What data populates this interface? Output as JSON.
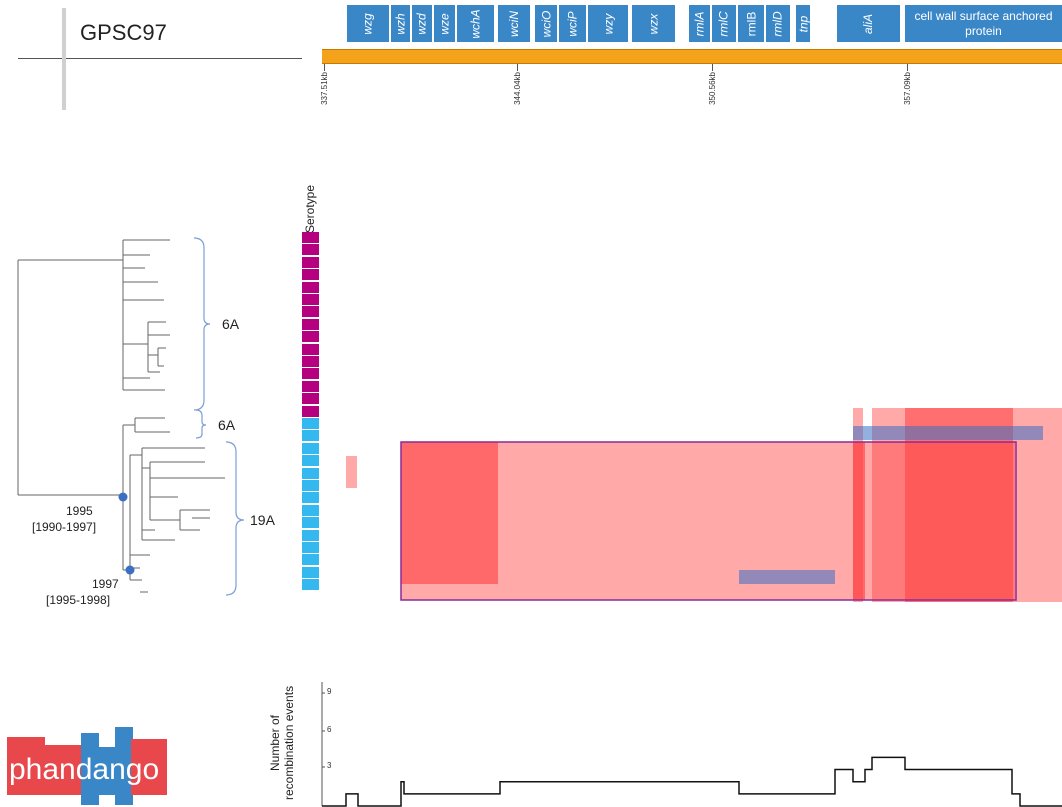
{
  "title": "GPSC97",
  "genes": [
    {
      "label": "wzg",
      "italic": true
    },
    {
      "label": "wzh",
      "italic": true
    },
    {
      "label": "wzd",
      "italic": true
    },
    {
      "label": "wze",
      "italic": true
    },
    {
      "label": "wchA",
      "italic": true
    },
    {
      "label": "wciN",
      "italic": true
    },
    {
      "label": "wciO",
      "italic": true
    },
    {
      "label": "wciP",
      "italic": true
    },
    {
      "label": "wzy",
      "italic": true
    },
    {
      "label": "wzx",
      "italic": true
    },
    {
      "label": "rmlA",
      "italic": true
    },
    {
      "label": "rmlC",
      "italic": true
    },
    {
      "label": "rmlB",
      "italic": false
    },
    {
      "label": "rmlD",
      "italic": true
    },
    {
      "label": "tnp",
      "italic": true
    },
    {
      "label": "aliA",
      "italic": true
    },
    {
      "label": "cell wall surface anchored protein",
      "italic": false
    }
  ],
  "genome_ticks": [
    "337.51kb",
    "344.04kb",
    "350.56kb",
    "357.09kb"
  ],
  "serotype_label": "Serotype",
  "serotype_colors": {
    "6A": "#b5007f",
    "19A": "#33b8f0"
  },
  "serotypes": [
    "6A",
    "6A",
    "6A",
    "6A",
    "6A",
    "6A",
    "6A",
    "6A",
    "6A",
    "6A",
    "6A",
    "6A",
    "6A",
    "6A",
    "6A",
    "19A",
    "19A",
    "19A",
    "19A",
    "19A",
    "19A",
    "19A",
    "19A",
    "19A",
    "19A",
    "19A",
    "19A",
    "19A",
    "19A"
  ],
  "clades": [
    {
      "label": "6A"
    },
    {
      "label": "6A"
    },
    {
      "label": "19A"
    }
  ],
  "node_dates": [
    {
      "year": "1995",
      "range": "[1990-1997]"
    },
    {
      "year": "1997",
      "range": "[1995-1998]"
    }
  ],
  "node_color": "#3a6fc4",
  "recombination_colors": {
    "ancestral": "#ff4040",
    "terminal": "#3a6fc4",
    "box_border": "#8a2a9a"
  },
  "chart_data": {
    "type": "line",
    "ylabel": "Number of recombination events",
    "ylim": [
      0,
      10
    ],
    "yticks": [
      3,
      6,
      9
    ],
    "series": [
      {
        "values": [
          0,
          1,
          0,
          2,
          1,
          2,
          1,
          3,
          2,
          3,
          4,
          3,
          1,
          0
        ]
      }
    ]
  },
  "logo": "phandango"
}
